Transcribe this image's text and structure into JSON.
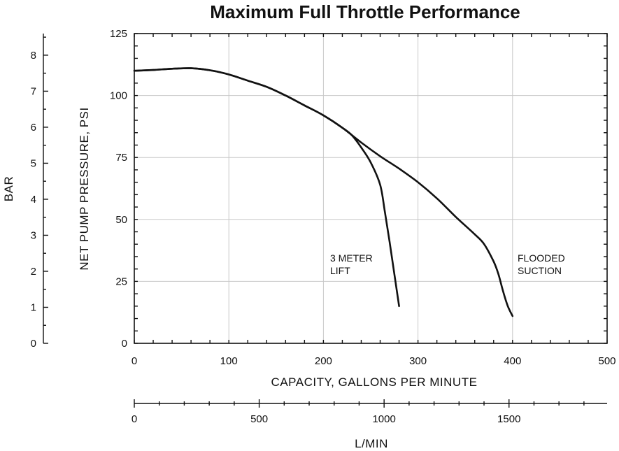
{
  "chart_data": {
    "type": "line",
    "title": "Maximum Full Throttle Performance",
    "xlabel": "CAPACITY, GALLONS PER MINUTE",
    "ylabel": "NET PUMP PRESSURE, PSI",
    "xlim": [
      0,
      500
    ],
    "ylim": [
      0,
      125
    ],
    "x_ticks": [
      "0",
      "100",
      "200",
      "300",
      "400",
      "500"
    ],
    "y_ticks": [
      "0",
      "25",
      "50",
      "75",
      "100",
      "125"
    ],
    "grid": true,
    "secondary_y": {
      "label": "BAR",
      "ticks": [
        "0",
        "1",
        "2",
        "3",
        "4",
        "5",
        "6",
        "7",
        "8"
      ],
      "lim": [
        0,
        8.6
      ]
    },
    "secondary_x": {
      "label": "L/MIN",
      "ticks": [
        "0",
        "500",
        "1000",
        "1500"
      ],
      "lim": [
        0,
        1892.7
      ]
    },
    "series": [
      {
        "name": "FLOODED SUCTION",
        "x": [
          0,
          20,
          40,
          60,
          80,
          100,
          120,
          140,
          160,
          180,
          200,
          220,
          240,
          260,
          280,
          300,
          320,
          340,
          360,
          370,
          380,
          385,
          390,
          395,
          400
        ],
        "y": [
          110,
          110.3,
          110.8,
          111,
          110.2,
          108.5,
          106,
          103.5,
          100,
          96,
          92,
          87,
          81,
          75.5,
          70.5,
          65,
          58.5,
          51,
          44,
          40,
          33,
          28,
          21,
          15,
          11
        ]
      },
      {
        "name": "3 METER LIFT",
        "x": [
          0,
          20,
          40,
          60,
          80,
          100,
          120,
          140,
          160,
          180,
          200,
          220,
          230,
          240,
          250,
          260,
          265,
          270,
          275,
          280
        ],
        "y": [
          110,
          110.3,
          110.8,
          111,
          110.2,
          108.5,
          106,
          103.5,
          100,
          96,
          92,
          87,
          84,
          79,
          73,
          64,
          53,
          41,
          28,
          15
        ]
      }
    ],
    "annotations": [
      {
        "lines": [
          "3 METER",
          "LIFT"
        ]
      },
      {
        "lines": [
          "FLOODED",
          "SUCTION"
        ]
      }
    ]
  }
}
